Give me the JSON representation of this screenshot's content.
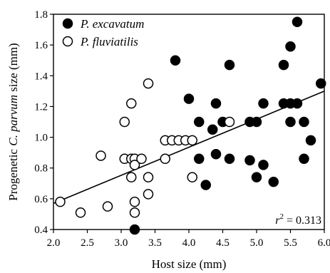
{
  "chart_data": {
    "type": "scatter",
    "xlabel": "Host size (mm)",
    "ylabel": {
      "prefix": "Progenetic ",
      "italic": "C. parvum",
      "suffix": " size (mm)"
    },
    "xlim": [
      2.0,
      6.0
    ],
    "ylim": [
      0.4,
      1.8
    ],
    "x_ticks": [
      "2.0",
      "2.5",
      "3.0",
      "3.5",
      "4.0",
      "4.5",
      "5.0",
      "5.5",
      "6.0"
    ],
    "y_ticks": [
      "0.4",
      "0.6",
      "0.8",
      "1.0",
      "1.2",
      "1.4",
      "1.6",
      "1.8"
    ],
    "grid": false,
    "legend_position": "top-left",
    "annotation": {
      "symbol": "r",
      "exponent": "2",
      "rest": " = 0.313"
    },
    "regression": {
      "x": [
        2.0,
        6.0
      ],
      "y": [
        0.57,
        1.3
      ]
    },
    "series": [
      {
        "name": "P. excavatum",
        "marker": "filled-circle",
        "color": "#000000",
        "points": [
          [
            3.2,
            0.4
          ],
          [
            3.8,
            1.5
          ],
          [
            4.0,
            1.25
          ],
          [
            4.15,
            1.1
          ],
          [
            4.15,
            0.86
          ],
          [
            4.25,
            0.69
          ],
          [
            4.35,
            1.05
          ],
          [
            4.4,
            1.22
          ],
          [
            4.4,
            0.89
          ],
          [
            4.5,
            1.1
          ],
          [
            4.6,
            1.47
          ],
          [
            4.6,
            0.86
          ],
          [
            4.9,
            1.1
          ],
          [
            4.9,
            0.85
          ],
          [
            5.0,
            1.1
          ],
          [
            5.0,
            0.74
          ],
          [
            5.1,
            1.22
          ],
          [
            5.1,
            0.82
          ],
          [
            5.25,
            0.71
          ],
          [
            5.4,
            1.47
          ],
          [
            5.4,
            1.22
          ],
          [
            5.5,
            1.59
          ],
          [
            5.5,
            1.22
          ],
          [
            5.5,
            1.1
          ],
          [
            5.6,
            1.75
          ],
          [
            5.6,
            1.22
          ],
          [
            5.7,
            1.1
          ],
          [
            5.7,
            0.86
          ],
          [
            5.8,
            0.98
          ],
          [
            5.95,
            1.35
          ]
        ]
      },
      {
        "name": "P. fluviatilis",
        "marker": "open-circle",
        "color": "#000000",
        "points": [
          [
            2.1,
            0.58
          ],
          [
            2.4,
            0.51
          ],
          [
            2.7,
            0.88
          ],
          [
            2.8,
            0.55
          ],
          [
            3.05,
            1.1
          ],
          [
            3.05,
            0.86
          ],
          [
            3.15,
            1.22
          ],
          [
            3.15,
            0.86
          ],
          [
            3.15,
            0.74
          ],
          [
            3.2,
            0.86
          ],
          [
            3.2,
            0.82
          ],
          [
            3.2,
            0.58
          ],
          [
            3.2,
            0.51
          ],
          [
            3.3,
            0.86
          ],
          [
            3.4,
            1.35
          ],
          [
            3.4,
            0.74
          ],
          [
            3.4,
            0.63
          ],
          [
            3.65,
            0.98
          ],
          [
            3.65,
            0.86
          ],
          [
            3.75,
            0.98
          ],
          [
            3.85,
            0.98
          ],
          [
            3.95,
            0.98
          ],
          [
            4.05,
            0.98
          ],
          [
            4.05,
            0.74
          ],
          [
            4.6,
            1.1
          ]
        ]
      }
    ]
  }
}
